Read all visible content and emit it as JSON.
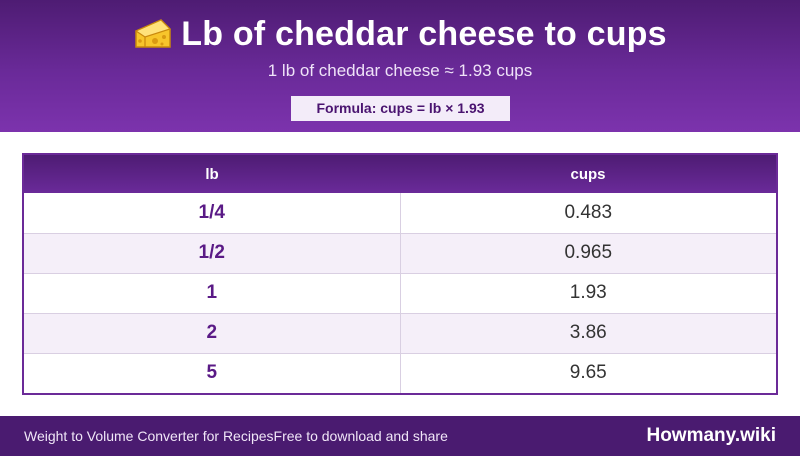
{
  "header": {
    "title": "Lb of cheddar cheese to cups",
    "title_icon": "cheese-icon",
    "subtitle": "1 lb of cheddar cheese ≈ 1.93 cups",
    "formula": "Formula: cups = lb × 1.93"
  },
  "table": {
    "columns": [
      "lb",
      "cups"
    ],
    "rows": [
      {
        "lb": "1/4",
        "cups": "0.483"
      },
      {
        "lb": "1/2",
        "cups": "0.965"
      },
      {
        "lb": "1",
        "cups": "1.93"
      },
      {
        "lb": "2",
        "cups": "3.86"
      },
      {
        "lb": "5",
        "cups": "9.65"
      }
    ]
  },
  "footer": {
    "left_text": "Weight to Volume Converter for Recipes",
    "middle_text": "Free to download and share",
    "brand": "Howmany.wiki"
  },
  "colors": {
    "header_purple": "#6a2a99",
    "dark_purple": "#4a1b70",
    "accent_text": "#5a1a86",
    "stripe": "#f5eff9"
  }
}
